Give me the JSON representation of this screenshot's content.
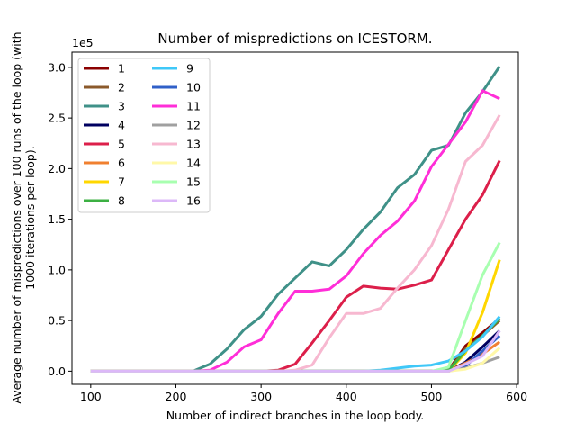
{
  "chart_data": {
    "type": "line",
    "title": "Number of mispredictions on ICESTORM.",
    "xlabel": "Number of indirect branches in the loop body.",
    "ylabel_line1": "Average number of mispredictions over 100 runs of the loop (with",
    "ylabel_line2": "1000 iterations per loop).",
    "y_multiplier": "1e5",
    "xlim": [
      78,
      602
    ],
    "ylim": [
      -0.13,
      3.15
    ],
    "xticks": [
      100,
      200,
      300,
      400,
      500,
      600
    ],
    "yticks": [
      0.0,
      0.5,
      1.0,
      1.5,
      2.0,
      2.5,
      3.0
    ],
    "ytick_labels": [
      "0.0",
      "0.5",
      "1.0",
      "1.5",
      "2.0",
      "2.5",
      "3.0"
    ],
    "legend_position": "top-left",
    "x": [
      100,
      120,
      140,
      160,
      180,
      200,
      220,
      240,
      260,
      280,
      300,
      320,
      340,
      360,
      380,
      400,
      420,
      440,
      460,
      480,
      500,
      520,
      540,
      560,
      580
    ],
    "series": [
      {
        "name": "1",
        "color": "#8b0000",
        "values": [
          0,
          0,
          0,
          0,
          0,
          0,
          0,
          0,
          0,
          0,
          0,
          0,
          0,
          0,
          0,
          0,
          0,
          0,
          0,
          0,
          0,
          0.01,
          0.25,
          0.38,
          0.52
        ]
      },
      {
        "name": "2",
        "color": "#8b5a2b",
        "values": [
          0,
          0,
          0,
          0,
          0,
          0,
          0,
          0,
          0,
          0,
          0,
          0,
          0,
          0,
          0,
          0,
          0,
          0,
          0,
          0,
          0,
          0.01,
          0.22,
          0.35,
          0.5
        ]
      },
      {
        "name": "3",
        "color": "#3f9188",
        "values": [
          0,
          0,
          0,
          0,
          0,
          0,
          0,
          0.07,
          0.22,
          0.41,
          0.54,
          0.76,
          0.92,
          1.08,
          1.04,
          1.2,
          1.4,
          1.57,
          1.81,
          1.94,
          2.18,
          2.23,
          2.55,
          2.76,
          3.01
        ]
      },
      {
        "name": "4",
        "color": "#000060",
        "values": [
          0,
          0,
          0,
          0,
          0,
          0,
          0,
          0,
          0,
          0,
          0,
          0,
          0,
          0,
          0,
          0,
          0,
          0,
          0,
          0,
          0,
          0,
          0.09,
          0.24,
          0.4
        ]
      },
      {
        "name": "5",
        "color": "#dc1f4a",
        "values": [
          0,
          0,
          0,
          0,
          0,
          0,
          0,
          0,
          0,
          0,
          0,
          0.01,
          0.07,
          0.28,
          0.5,
          0.73,
          0.84,
          0.82,
          0.81,
          0.85,
          0.9,
          1.2,
          1.5,
          1.74,
          2.08
        ]
      },
      {
        "name": "6",
        "color": "#f08030",
        "values": [
          0,
          0,
          0,
          0,
          0,
          0,
          0,
          0,
          0,
          0,
          0,
          0,
          0,
          0,
          0,
          0,
          0,
          0,
          0,
          0,
          0,
          0,
          0.08,
          0.17,
          0.29
        ]
      },
      {
        "name": "7",
        "color": "#ffd700",
        "values": [
          0,
          0,
          0,
          0,
          0,
          0,
          0,
          0,
          0,
          0,
          0,
          0,
          0,
          0,
          0,
          0,
          0,
          0,
          0,
          0,
          0,
          0,
          0.18,
          0.58,
          1.1
        ]
      },
      {
        "name": "8",
        "color": "#3cb043",
        "values": [
          0,
          0,
          0,
          0,
          0,
          0,
          0,
          0,
          0,
          0,
          0,
          0,
          0,
          0,
          0,
          0,
          0,
          0,
          0,
          0,
          0,
          0.01,
          0.2,
          0.35,
          0.52
        ]
      },
      {
        "name": "9",
        "color": "#3fc8f8",
        "values": [
          0,
          0,
          0,
          0,
          0,
          0,
          0,
          0,
          0,
          0,
          0,
          0,
          0,
          0,
          0,
          0,
          0,
          0.01,
          0.03,
          0.05,
          0.06,
          0.1,
          0.2,
          0.34,
          0.54
        ]
      },
      {
        "name": "10",
        "color": "#3060c8",
        "values": [
          0,
          0,
          0,
          0,
          0,
          0,
          0,
          0,
          0,
          0,
          0,
          0,
          0,
          0,
          0,
          0,
          0,
          0,
          0,
          0,
          0,
          0,
          0.05,
          0.2,
          0.35
        ]
      },
      {
        "name": "11",
        "color": "#ff2ed8",
        "values": [
          0,
          0,
          0,
          0,
          0,
          0,
          0,
          0.01,
          0.09,
          0.24,
          0.31,
          0.57,
          0.79,
          0.79,
          0.81,
          0.94,
          1.16,
          1.34,
          1.48,
          1.68,
          2.02,
          2.24,
          2.46,
          2.77,
          2.69
        ]
      },
      {
        "name": "12",
        "color": "#a0a0a0",
        "values": [
          0,
          0,
          0,
          0,
          0,
          0,
          0,
          0,
          0,
          0,
          0,
          0,
          0,
          0,
          0,
          0,
          0,
          0,
          0,
          0,
          0,
          0,
          0.03,
          0.08,
          0.14
        ]
      },
      {
        "name": "13",
        "color": "#f7b8d0",
        "values": [
          0,
          0,
          0,
          0,
          0,
          0,
          0,
          0,
          0,
          0,
          0,
          0,
          0.01,
          0.06,
          0.33,
          0.57,
          0.57,
          0.62,
          0.82,
          1.0,
          1.24,
          1.6,
          2.07,
          2.23,
          2.53
        ]
      },
      {
        "name": "14",
        "color": "#fff8a8",
        "values": [
          0,
          0,
          0,
          0,
          0,
          0,
          0,
          0,
          0,
          0,
          0,
          0,
          0,
          0,
          0,
          0,
          0,
          0,
          0,
          0,
          0,
          0,
          0.02,
          0.08,
          0.23
        ]
      },
      {
        "name": "15",
        "color": "#a8ffb0",
        "values": [
          0,
          0,
          0,
          0,
          0,
          0,
          0,
          0,
          0,
          0,
          0,
          0,
          0,
          0,
          0,
          0,
          0,
          0,
          0,
          0,
          0,
          0.04,
          0.5,
          0.95,
          1.27
        ]
      },
      {
        "name": "16",
        "color": "#dcb8f8",
        "values": [
          0,
          0,
          0,
          0,
          0,
          0,
          0,
          0,
          0,
          0,
          0,
          0,
          0,
          0,
          0,
          0,
          0,
          0,
          0,
          0,
          0,
          0,
          0.07,
          0.15,
          0.4
        ]
      }
    ]
  }
}
